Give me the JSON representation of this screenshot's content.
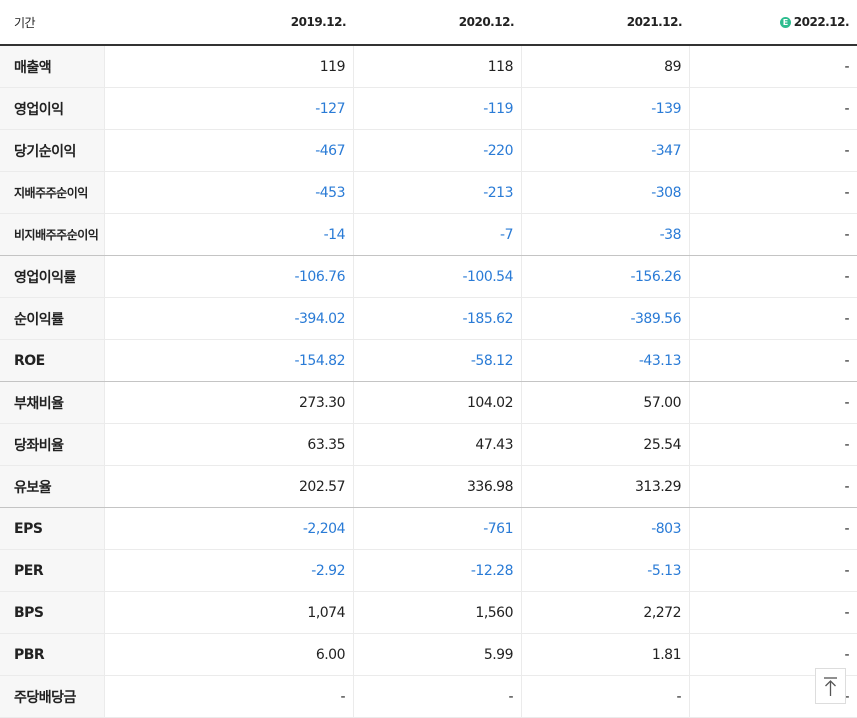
{
  "table": {
    "header": [
      "기간",
      "2019.12.",
      "2020.12.",
      "2021.12.",
      "2022.12."
    ],
    "rows": [
      [
        "매출액",
        "119",
        "118",
        "89",
        "-"
      ],
      [
        "영업이익",
        "-127",
        "-119",
        "-139",
        "-"
      ],
      [
        "당기순이익",
        "-467",
        "-220",
        "-347",
        "-"
      ],
      [
        "지배주주순이익",
        "-453",
        "-213",
        "-308",
        "-"
      ],
      [
        "비지배주주순이익",
        "-14",
        "-7",
        "-38",
        "-"
      ],
      [
        "영업이익률",
        "-106.76",
        "-100.54",
        "-156.26",
        "-"
      ],
      [
        "순이익률",
        "-394.02",
        "-185.62",
        "-389.56",
        "-"
      ],
      [
        "ROE",
        "-154.82",
        "-58.12",
        "-43.13",
        "-"
      ],
      [
        "부채비율",
        "273.30",
        "104.02",
        "57.00",
        "-"
      ],
      [
        "당좌비율",
        "63.35",
        "47.43",
        "25.54",
        "-"
      ],
      [
        "유보율",
        "202.57",
        "336.98",
        "313.29",
        "-"
      ],
      [
        "EPS",
        "-2,204",
        "-761",
        "-803",
        "-"
      ],
      [
        "PER",
        "-2.92",
        "-12.28",
        "-5.13",
        "-"
      ],
      [
        "BPS",
        "1,074",
        "1,560",
        "2,272",
        "-"
      ],
      [
        "PBR",
        "6.00",
        "5.99",
        "1.81",
        "-"
      ],
      [
        "주당배당금",
        "-",
        "-",
        "-",
        "-"
      ]
    ]
  }
}
